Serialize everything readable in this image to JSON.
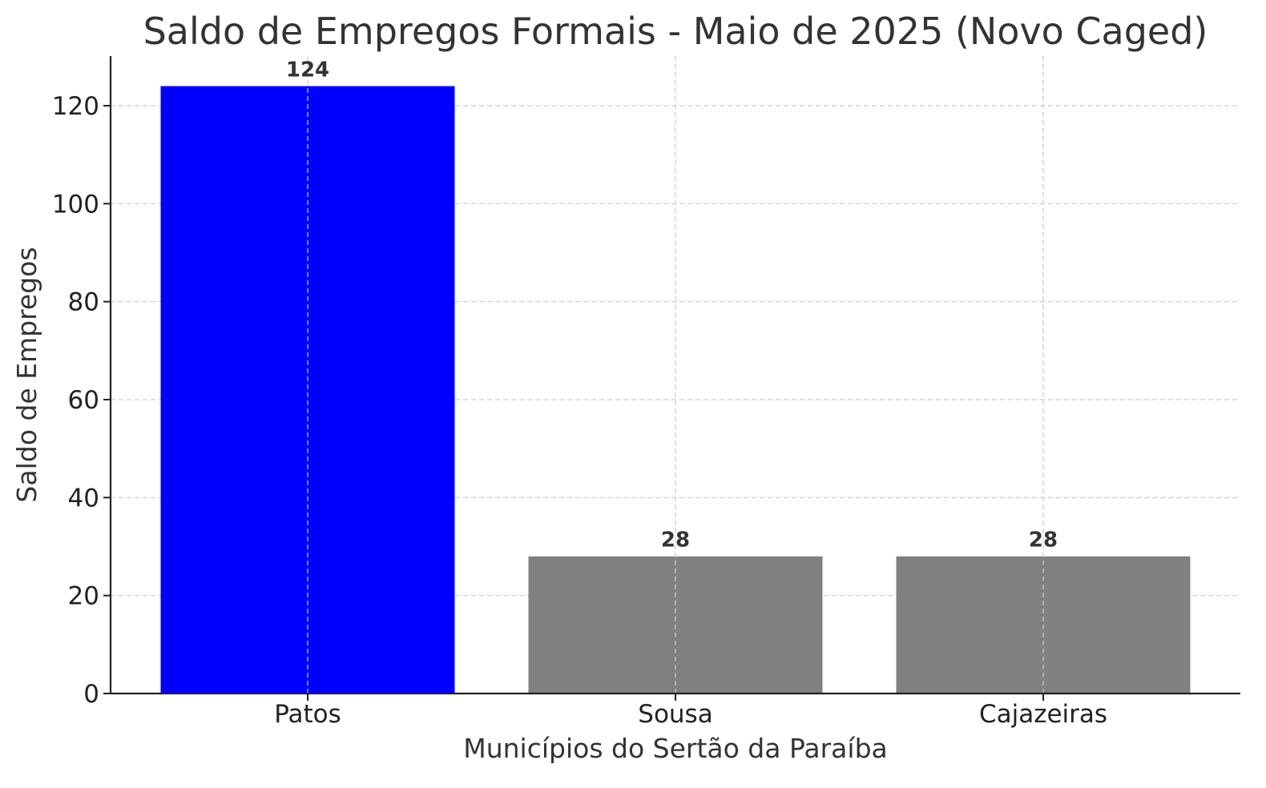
{
  "chart_data": {
    "type": "bar",
    "title": "Saldo de Empregos Formais - Maio de 2025 (Novo Caged)",
    "xlabel": "Municípios do Sertão da Paraíba",
    "ylabel": "Saldo de Empregos",
    "categories": [
      "Patos",
      "Sousa",
      "Cajazeiras"
    ],
    "values": [
      124,
      28,
      28
    ],
    "data_labels": [
      "124",
      "28",
      "28"
    ],
    "bar_colors": [
      "#0000ff",
      "#808080",
      "#808080"
    ],
    "ylim": [
      0,
      130
    ],
    "yticks": [
      0,
      20,
      40,
      60,
      80,
      100,
      120
    ],
    "grid": true,
    "legend": "none"
  }
}
